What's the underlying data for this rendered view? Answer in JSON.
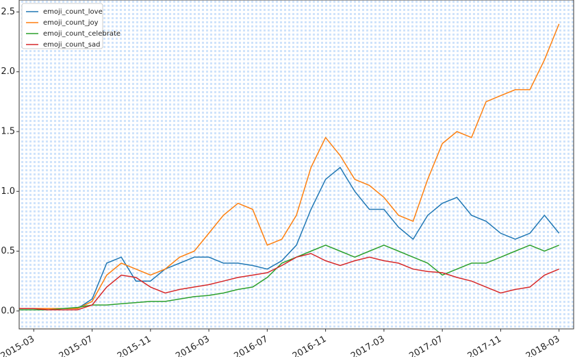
{
  "chart_data": {
    "type": "line",
    "x": [
      "2015-02",
      "2015-03",
      "2015-04",
      "2015-05",
      "2015-06",
      "2015-07",
      "2015-08",
      "2015-09",
      "2015-10",
      "2015-11",
      "2015-12",
      "2016-01",
      "2016-02",
      "2016-03",
      "2016-04",
      "2016-05",
      "2016-06",
      "2016-07",
      "2016-08",
      "2016-09",
      "2016-10",
      "2016-11",
      "2016-12",
      "2017-01",
      "2017-02",
      "2017-03",
      "2017-04",
      "2017-05",
      "2017-06",
      "2017-07",
      "2017-08",
      "2017-09",
      "2017-10",
      "2017-11",
      "2017-12",
      "2018-01",
      "2018-02",
      "2018-03"
    ],
    "series": [
      {
        "name": "emoji_count_love",
        "color": "#1f77b4",
        "values": [
          0.02,
          0.02,
          0.02,
          0.02,
          0.02,
          0.1,
          0.4,
          0.45,
          0.25,
          0.25,
          0.35,
          0.4,
          0.45,
          0.45,
          0.4,
          0.4,
          0.38,
          0.35,
          0.42,
          0.55,
          0.85,
          1.1,
          1.2,
          1.0,
          0.85,
          0.85,
          0.7,
          0.6,
          0.8,
          0.9,
          0.95,
          0.8,
          0.75,
          0.65,
          0.6,
          0.65,
          0.8,
          0.65
        ]
      },
      {
        "name": "emoji_count_joy",
        "color": "#ff7f0e",
        "values": [
          0.02,
          0.02,
          0.02,
          0.02,
          0.02,
          0.08,
          0.3,
          0.4,
          0.35,
          0.3,
          0.35,
          0.45,
          0.5,
          0.65,
          0.8,
          0.9,
          0.85,
          0.55,
          0.6,
          0.8,
          1.2,
          1.45,
          1.3,
          1.1,
          1.05,
          0.95,
          0.8,
          0.75,
          1.1,
          1.4,
          1.5,
          1.45,
          1.75,
          1.8,
          1.85,
          1.85,
          2.1,
          2.4
        ]
      },
      {
        "name": "emoji_count_celebrate",
        "color": "#2ca02c",
        "values": [
          0.01,
          0.01,
          0.01,
          0.02,
          0.03,
          0.05,
          0.05,
          0.06,
          0.07,
          0.08,
          0.08,
          0.1,
          0.12,
          0.13,
          0.15,
          0.18,
          0.2,
          0.28,
          0.4,
          0.45,
          0.5,
          0.55,
          0.5,
          0.45,
          0.5,
          0.55,
          0.5,
          0.45,
          0.4,
          0.3,
          0.35,
          0.4,
          0.4,
          0.45,
          0.5,
          0.55,
          0.5,
          0.55
        ]
      },
      {
        "name": "emoji_count_sad",
        "color": "#d62728",
        "values": [
          0.02,
          0.02,
          0.01,
          0.01,
          0.01,
          0.05,
          0.2,
          0.3,
          0.28,
          0.2,
          0.15,
          0.18,
          0.2,
          0.22,
          0.25,
          0.28,
          0.3,
          0.32,
          0.38,
          0.45,
          0.48,
          0.42,
          0.38,
          0.42,
          0.45,
          0.42,
          0.4,
          0.35,
          0.33,
          0.32,
          0.28,
          0.25,
          0.2,
          0.15,
          0.18,
          0.2,
          0.3,
          0.35
        ]
      }
    ],
    "xlim": [
      "2015-02",
      "2018-04"
    ],
    "xticks": [
      "2015-03",
      "2015-07",
      "2015-11",
      "2016-03",
      "2016-07",
      "2016-11",
      "2017-03",
      "2017-07",
      "2017-11",
      "2018-03"
    ],
    "ylim": [
      -0.15,
      2.6
    ],
    "yticks": [
      {
        "value": 0,
        "label": "0.0"
      },
      0.5,
      {
        "value": 1,
        "label": "1.0"
      },
      1.5,
      {
        "value": 2,
        "label": "2.0"
      },
      2.5
    ],
    "legend": "upper left"
  }
}
